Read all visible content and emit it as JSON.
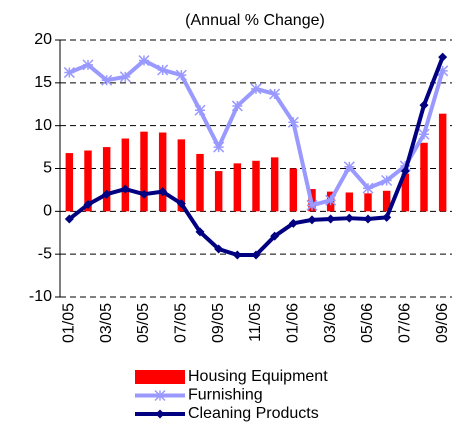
{
  "chart_data": {
    "type": "bar",
    "title": "(Annual % Change)",
    "categories": [
      "01/05",
      null,
      "03/05",
      null,
      "05/05",
      null,
      "07/05",
      null,
      "09/05",
      null,
      "11/05",
      null,
      "01/06",
      null,
      "03/06",
      null,
      "05/06",
      null,
      "07/06",
      null,
      "09/06"
    ],
    "series": [
      {
        "name": "Housing Equipment",
        "type": "bar",
        "color": "#ff0000",
        "values": [
          6.8,
          7.1,
          7.5,
          8.5,
          9.3,
          9.2,
          8.4,
          6.7,
          4.7,
          5.6,
          5.9,
          6.3,
          5.0,
          2.6,
          2.3,
          2.2,
          2.1,
          2.4,
          4.4,
          8.0,
          11.4
        ]
      },
      {
        "name": "Furnishing",
        "type": "line",
        "marker": "star",
        "color": "#9999ff",
        "values": [
          16.2,
          17.1,
          15.3,
          15.7,
          17.6,
          16.5,
          15.9,
          11.8,
          7.5,
          12.3,
          14.3,
          13.7,
          10.4,
          0.7,
          1.3,
          5.2,
          2.7,
          3.6,
          5.3,
          9.0,
          16.4
        ]
      },
      {
        "name": "Cleaning Products",
        "type": "line",
        "marker": "diamond",
        "color": "#000080",
        "values": [
          -0.9,
          0.8,
          2.0,
          2.6,
          2.0,
          2.3,
          0.9,
          -2.4,
          -4.4,
          -5.1,
          -5.1,
          -2.9,
          -1.4,
          -1.0,
          -0.9,
          -0.8,
          -0.9,
          -0.7,
          4.7,
          12.4,
          18.0
        ]
      }
    ],
    "ylim": [
      -10,
      20
    ],
    "yticks": [
      -10,
      -5,
      0,
      5,
      10,
      15,
      20
    ],
    "grid": true,
    "legend": "bottom"
  }
}
